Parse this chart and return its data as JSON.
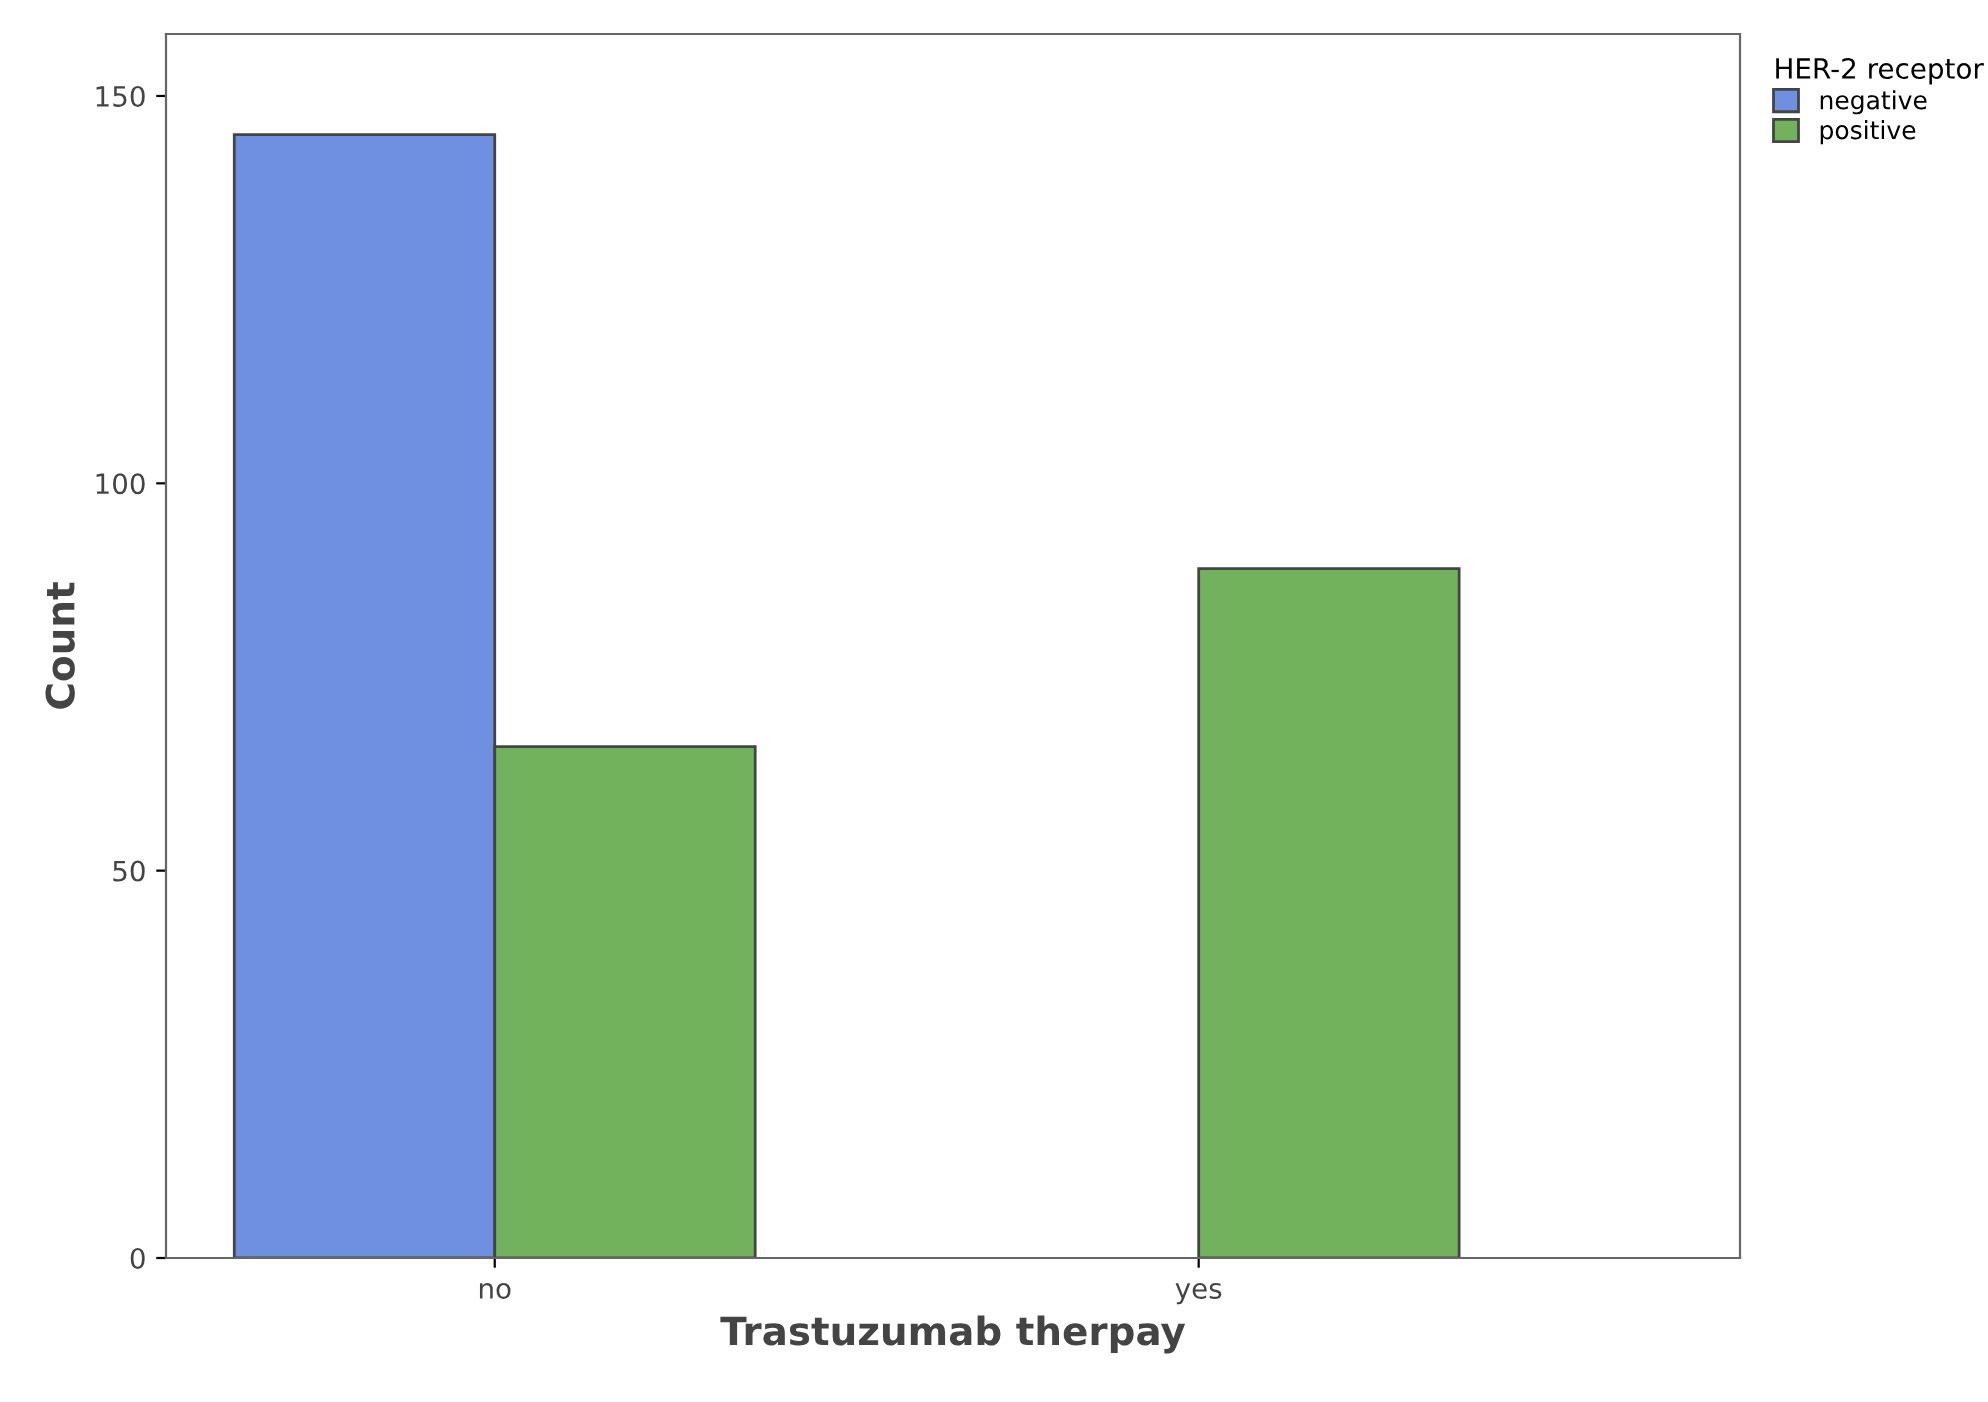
{
  "chart_data": {
    "type": "bar",
    "xlabel": "Trastuzumab therpay",
    "ylabel": "Count",
    "legend_title": "HER-2 receptor",
    "categories": [
      "no",
      "yes"
    ],
    "series": [
      {
        "name": "negative",
        "color": "#6f8fe0",
        "values": [
          145,
          null
        ]
      },
      {
        "name": "positive",
        "color": "#72b25c",
        "values": [
          66,
          89
        ]
      }
    ],
    "ylim": [
      0,
      158
    ],
    "yticks": [
      0,
      50,
      100,
      150
    ],
    "grid": false,
    "legend": "top right"
  }
}
